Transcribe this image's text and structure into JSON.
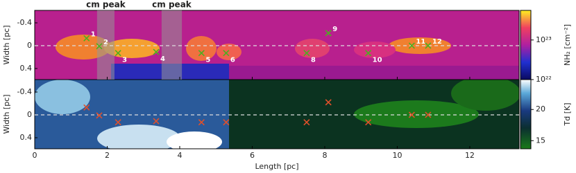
{
  "chart_data": [
    {
      "type": "scatter",
      "ylabel": "Width [pc]",
      "xlim": [
        0,
        13.36
      ],
      "ylim": [
        -0.618,
        0.594
      ],
      "yticks": [
        -0.4,
        0,
        0.4
      ],
      "xticks": [
        0,
        2,
        4,
        6,
        8,
        10,
        12
      ],
      "shaded": {
        "label": "cm peak",
        "ranges": [
          [
            1.72,
            2.2
          ],
          [
            3.5,
            4.06
          ]
        ]
      },
      "x": [
        1.43,
        1.78,
        2.3,
        3.35,
        4.6,
        5.28,
        7.5,
        8.1,
        9.2,
        10.4,
        10.85
      ],
      "y": [
        -0.13,
        0.01,
        0.13,
        0.11,
        0.13,
        0.13,
        0.13,
        -0.22,
        0.13,
        0.0,
        0.0
      ],
      "labels": [
        "1",
        "2",
        "3",
        "4",
        "5",
        "6",
        "8",
        "9",
        "10",
        "11",
        "12"
      ],
      "marker_color": "#4caf20",
      "colorbar": {
        "label": "NH₂ [cm⁻²]",
        "log": true,
        "clim": [
          1e+22,
          5.6e+23
        ],
        "ticks": [
          {
            "value": 1e+22,
            "label": "10²²"
          },
          {
            "value": 1e+23,
            "label": "10²³"
          }
        ]
      }
    },
    {
      "type": "scatter",
      "ylabel": "Width [pc]",
      "xlabel": "Length [pc]",
      "xlim": [
        0,
        13.36
      ],
      "ylim": [
        -0.618,
        0.594
      ],
      "yticks": [
        -0.4,
        0,
        0.4
      ],
      "xticks": [
        0,
        2,
        4,
        6,
        8,
        10,
        12
      ],
      "x": [
        1.43,
        1.78,
        2.3,
        3.35,
        4.6,
        5.28,
        7.5,
        8.1,
        9.2,
        10.4,
        10.85
      ],
      "y": [
        -0.13,
        0.01,
        0.13,
        0.11,
        0.13,
        0.13,
        0.13,
        -0.22,
        0.13,
        0.0,
        0.0
      ],
      "marker_color": "#e0502a",
      "colorbar": {
        "label": "Td [K]",
        "log": false,
        "clim": [
          13.7,
          24.8
        ],
        "ticks": [
          15,
          20
        ]
      }
    }
  ]
}
